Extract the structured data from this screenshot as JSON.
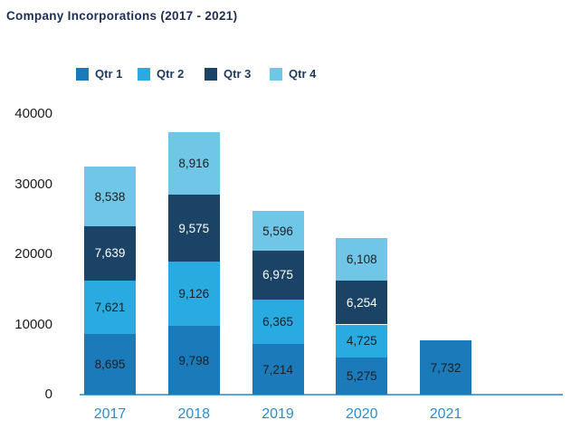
{
  "title": "Company Incorporations (2017 - 2021)",
  "chart_data": {
    "type": "bar",
    "stacked": true,
    "title": "Company Incorporations (2017 - 2021)",
    "categories": [
      "2017",
      "2018",
      "2019",
      "2020",
      "2021"
    ],
    "series": [
      {
        "name": "Qtr 1",
        "color": "#1b7ab9",
        "label_color": "#1f1f1f",
        "values": [
          8695,
          9798,
          7214,
          5275,
          7732
        ]
      },
      {
        "name": "Qtr 2",
        "color": "#29abe2",
        "label_color": "#1f1f1f",
        "values": [
          7621,
          9126,
          6365,
          4725,
          null
        ]
      },
      {
        "name": "Qtr 3",
        "color": "#1a4365",
        "label_color": "#ffffff",
        "values": [
          7639,
          9575,
          6975,
          6254,
          null
        ]
      },
      {
        "name": "Qtr 4",
        "color": "#6fc6e7",
        "label_color": "#1f1f1f",
        "values": [
          8538,
          8916,
          5596,
          6108,
          null
        ]
      }
    ],
    "y_ticks": [
      0,
      10000,
      20000,
      30000,
      40000
    ],
    "ylim": [
      0,
      40000
    ],
    "grid": false,
    "legend_position": "top",
    "data_labels": "thousands-comma",
    "axis_line_color": "#56a7d9",
    "x_label_color": "#2b8dcd",
    "y_label_color": "#1c1c1c"
  }
}
